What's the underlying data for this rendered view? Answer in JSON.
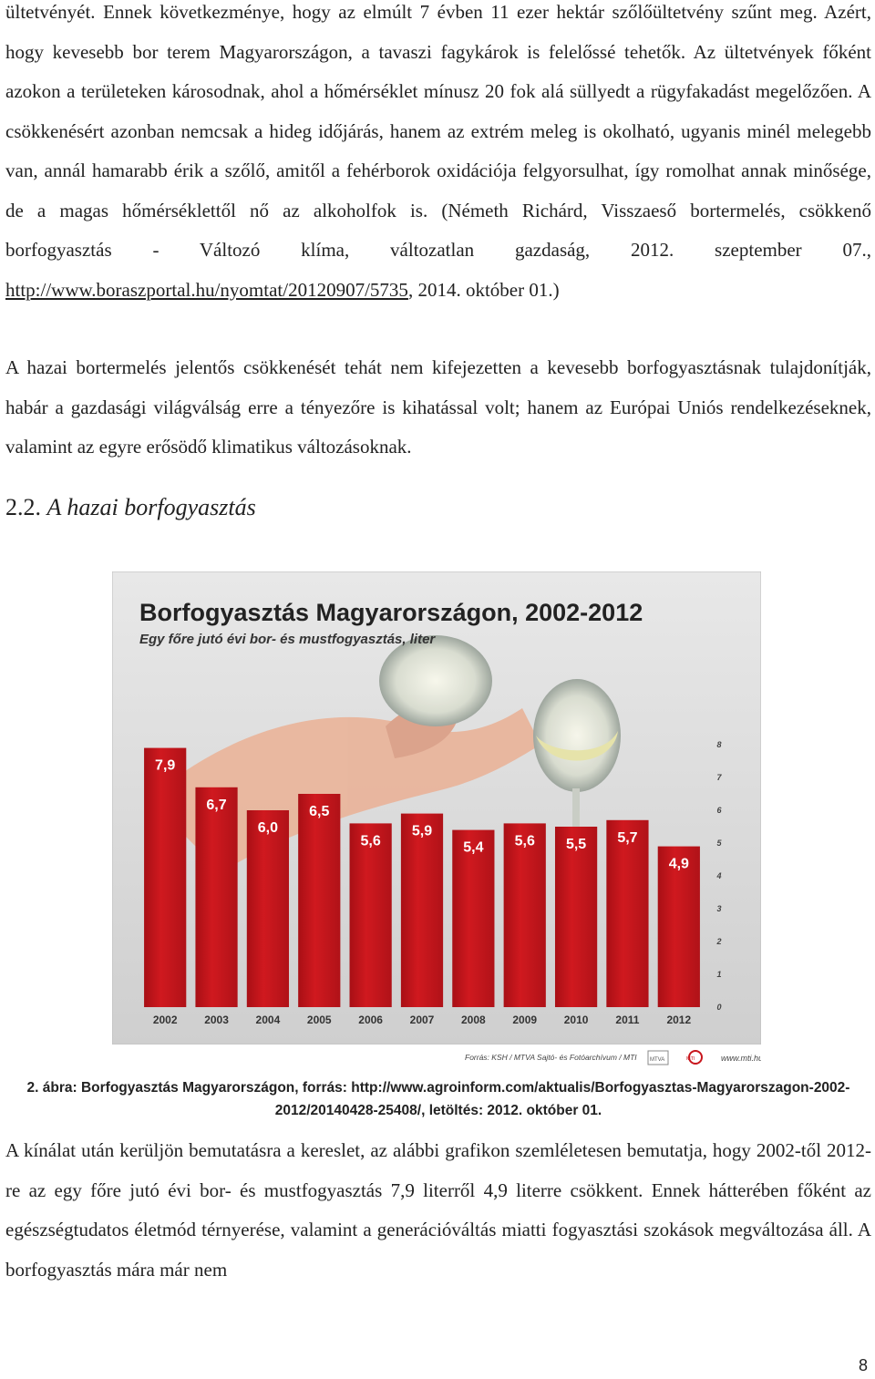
{
  "paragraphs": {
    "p1": {
      "text_before_link": "ültetvényét. Ennek következménye, hogy az elmúlt 7 évben 11 ezer hektár szőlőültetvény szűnt meg. Azért, hogy kevesebb bor terem Magyarországon, a tavaszi fagykárok is felelőssé tehetők. Az ültetvények főként azokon a területeken károsodnak, ahol a hőmérséklet mínusz 20 fok alá süllyedt a rügyfakadást megelőzően. A csökkenésért azonban nemcsak a hideg időjárás, hanem az extrém meleg is okolható, ugyanis minél melegebb van, annál hamarabb érik a szőlő, amitől a fehérborok oxidációja felgyorsulhat, így romolhat annak minősége, de a magas hőmérséklettől nő az alkoholfok is. (Németh Richárd, Visszaeső bortermelés, csökkenő borfogyasztás - Változó klíma, változatlan gazdaság, 2012. szeptember 07., ",
      "link": "http://www.boraszportal.hu/nyomtat/20120907/5735",
      "text_after_link": ", 2014. október 01.)"
    },
    "p2": "A hazai bortermelés jelentős csökkenését tehát nem kifejezetten a kevesebb borfogyasztásnak tulajdonítják, habár a gazdasági világválság erre a tényezőre is kihatással volt; hanem az Európai Uniós rendelkezéseknek, valamint az egyre erősödő klimatikus változásoknak.",
    "p3": "A kínálat után kerüljön bemutatásra a kereslet, az alábbi grafikon szemléletesen bemutatja, hogy 2002-től 2012-re az egy főre jutó évi bor- és mustfogyasztás 7,9 literről 4,9 literre csökkent. Ennek hátterében főként az egészségtudatos életmód térnyerése, valamint a generációváltás miatti fogyasztási szokások megváltozása áll. A borfogyasztás mára már nem"
  },
  "section_heading": {
    "number": "2.2.",
    "title": "A hazai borfogyasztás"
  },
  "figure": {
    "source_line": "Forrás: KSH / MTVA Sajtó- és Fotóarchívum / MTI",
    "logos": [
      "MTVA",
      "MTI"
    ],
    "site": "www.mti.hu"
  },
  "caption": "2. ábra: Borfogyasztás Magyarországon, forrás: http://www.agroinform.com/aktualis/Borfogyasztas-Magyarorszagon-2002-2012/20140428-25408/, letöltés: 2012. október 01.",
  "page_number": "8",
  "chart_data": {
    "type": "bar",
    "title": "Borfogyasztás Magyarországon, 2002-2012",
    "subtitle": "Egy főre jutó évi bor- és mustfogyasztás, liter",
    "categories": [
      "2002",
      "2003",
      "2004",
      "2005",
      "2006",
      "2007",
      "2008",
      "2009",
      "2010",
      "2011",
      "2012"
    ],
    "values": [
      7.9,
      6.7,
      6.0,
      6.5,
      5.6,
      5.9,
      5.4,
      5.6,
      5.5,
      5.7,
      4.9
    ],
    "value_labels": [
      "7,9",
      "6,7",
      "6,0",
      "6,5",
      "5,6",
      "5,9",
      "5,4",
      "5,6",
      "5,5",
      "5,7",
      "4,9"
    ],
    "yticks": [
      "0",
      "1",
      "2",
      "3",
      "4",
      "5",
      "6",
      "7",
      "8"
    ],
    "ylim": [
      0,
      8
    ],
    "y_axis_side": "right",
    "grid": false,
    "legend": "none",
    "colors": {
      "bar": "#c8161d",
      "background": "#d9d9d9",
      "title": "#222222"
    }
  }
}
